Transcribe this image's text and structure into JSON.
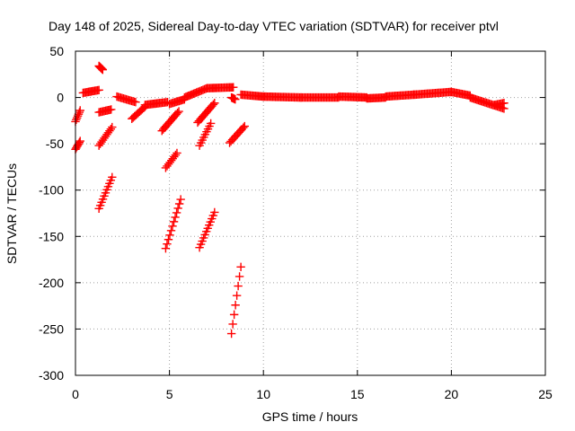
{
  "chart_data": {
    "type": "scatter",
    "title": "Day 148 of 2025, Sidereal Day-to-day VTEC variation (SDTVAR) for receiver ptvl",
    "xlabel": "GPS time / hours",
    "ylabel": "SDTVAR / TECUs",
    "xlim": [
      0,
      25
    ],
    "ylim": [
      -300,
      50
    ],
    "xticks": [
      0,
      5,
      10,
      15,
      20,
      25
    ],
    "yticks": [
      -300,
      -250,
      -200,
      -150,
      -100,
      -50,
      0,
      50
    ],
    "grid": true,
    "marker": "plus",
    "color": "#ff0000",
    "segments": [
      {
        "x0": 0.0,
        "x1": 0.25,
        "y0": -26,
        "y1": -14
      },
      {
        "x0": 0.0,
        "x1": 0.25,
        "y0": -56,
        "y1": -47
      },
      {
        "x0": 0.4,
        "x1": 1.25,
        "y0": 5,
        "y1": 8
      },
      {
        "x0": 1.25,
        "x1": 1.45,
        "y0": 34,
        "y1": 30
      },
      {
        "x0": 1.25,
        "x1": 1.9,
        "y0": -16,
        "y1": -13
      },
      {
        "x0": 1.25,
        "x1": 1.95,
        "y0": -52,
        "y1": -32
      },
      {
        "x0": 1.25,
        "x1": 1.95,
        "y0": -120,
        "y1": -86
      },
      {
        "x0": 2.2,
        "x1": 3.2,
        "y0": 1,
        "y1": -5
      },
      {
        "x0": 3.0,
        "x1": 3.7,
        "y0": -23,
        "y1": -10
      },
      {
        "x0": 3.7,
        "x1": 4.9,
        "y0": -8,
        "y1": -5
      },
      {
        "x0": 4.6,
        "x1": 5.5,
        "y0": -36,
        "y1": -15
      },
      {
        "x0": 4.8,
        "x1": 5.4,
        "y0": -76,
        "y1": -60
      },
      {
        "x0": 4.8,
        "x1": 5.6,
        "y0": -163,
        "y1": -110
      },
      {
        "x0": 5.0,
        "x1": 5.8,
        "y0": -7,
        "y1": -2
      },
      {
        "x0": 5.8,
        "x1": 7.0,
        "y0": 0,
        "y1": 10
      },
      {
        "x0": 6.5,
        "x1": 7.4,
        "y0": -27,
        "y1": -6
      },
      {
        "x0": 6.6,
        "x1": 7.2,
        "y0": -52,
        "y1": -28
      },
      {
        "x0": 6.6,
        "x1": 7.4,
        "y0": -162,
        "y1": -124
      },
      {
        "x0": 7.0,
        "x1": 8.4,
        "y0": 10,
        "y1": 11
      },
      {
        "x0": 8.2,
        "x1": 9.0,
        "y0": -49,
        "y1": -31
      },
      {
        "x0": 8.3,
        "x1": 8.5,
        "y0": 0,
        "y1": -2
      },
      {
        "x0": 8.3,
        "x1": 8.8,
        "y0": -255,
        "y1": -183
      },
      {
        "x0": 8.8,
        "x1": 10.0,
        "y0": 3,
        "y1": 1
      },
      {
        "x0": 10.0,
        "x1": 12.0,
        "y0": 1,
        "y1": 0
      },
      {
        "x0": 12.0,
        "x1": 14.0,
        "y0": 0,
        "y1": 0
      },
      {
        "x0": 14.0,
        "x1": 15.5,
        "y0": 1,
        "y1": 0
      },
      {
        "x0": 15.5,
        "x1": 16.5,
        "y0": -1,
        "y1": 0
      },
      {
        "x0": 16.5,
        "x1": 18.0,
        "y0": 1,
        "y1": 3
      },
      {
        "x0": 18.0,
        "x1": 20.0,
        "y0": 3,
        "y1": 6
      },
      {
        "x0": 20.0,
        "x1": 21.0,
        "y0": 6,
        "y1": 2
      },
      {
        "x0": 21.0,
        "x1": 22.8,
        "y0": 0,
        "y1": -12
      },
      {
        "x0": 22.3,
        "x1": 22.8,
        "y0": -8,
        "y1": -6
      }
    ]
  }
}
